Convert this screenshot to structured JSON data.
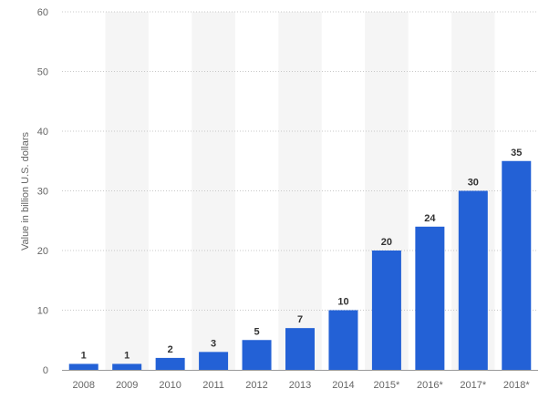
{
  "chart_data": {
    "type": "bar",
    "categories": [
      "2008",
      "2009",
      "2010",
      "2011",
      "2012",
      "2013",
      "2014",
      "2015*",
      "2016*",
      "2017*",
      "2018*"
    ],
    "values": [
      1,
      1,
      2,
      3,
      5,
      7,
      10,
      20,
      24,
      30,
      35
    ],
    "data_labels": [
      "1",
      "1",
      "2",
      "3",
      "5",
      "7",
      "10",
      "20",
      "24",
      "30",
      "35"
    ],
    "ylabel": "Value in billion U.S. dollars",
    "ylim": [
      0,
      60
    ],
    "yticks": [
      0,
      10,
      20,
      30,
      40,
      50,
      60
    ],
    "grid": true,
    "colors": {
      "bar": "#2361d6",
      "band": "#f5f5f5",
      "grid": "#c8c8c8"
    }
  }
}
